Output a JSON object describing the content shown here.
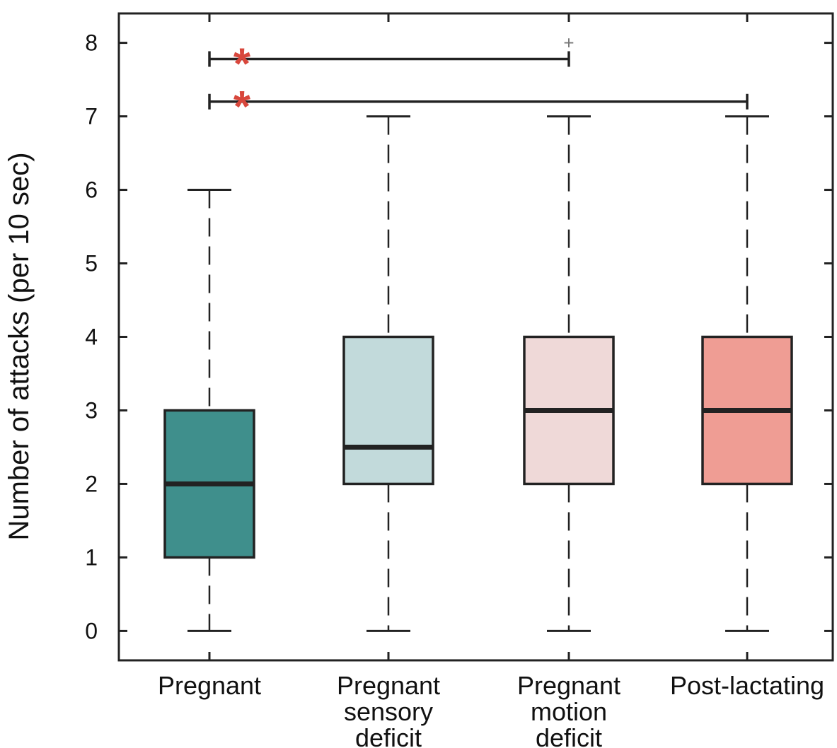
{
  "chart_data": {
    "type": "box",
    "title": "",
    "xlabel": "",
    "ylabel": "Number of attacks (per 10 sec)",
    "ylim": [
      -0.4,
      8.4
    ],
    "yticks": [
      "0",
      "1",
      "2",
      "3",
      "4",
      "5",
      "6",
      "7",
      "8"
    ],
    "grid": false,
    "categories": [
      {
        "lines": [
          "Pregnant"
        ]
      },
      {
        "lines": [
          "Pregnant",
          "sensory",
          "deficit"
        ]
      },
      {
        "lines": [
          "Pregnant",
          "motion",
          "deficit"
        ]
      },
      {
        "lines": [
          "Post-lactating"
        ]
      }
    ],
    "boxes": [
      {
        "group": "Pregnant",
        "whisker_low": 0,
        "q1": 1,
        "median": 2,
        "q3": 3,
        "whisker_high": 6,
        "fill": "#3f8f8c"
      },
      {
        "group": "Pregnant sensory deficit",
        "whisker_low": 0,
        "q1": 2,
        "median": 2.5,
        "q3": 4,
        "whisker_high": 7,
        "fill": "#c2dadb"
      },
      {
        "group": "Pregnant motion deficit",
        "whisker_low": 0,
        "q1": 2,
        "median": 3,
        "q3": 4,
        "whisker_high": 7,
        "fill": "#efd9d8"
      },
      {
        "group": "Post-lactating",
        "whisker_low": 0,
        "q1": 2,
        "median": 3,
        "q3": 4,
        "whisker_high": 7,
        "fill": "#ef9d94"
      }
    ],
    "outliers": [
      {
        "group_index": 2,
        "value": 8,
        "symbol": "+"
      }
    ],
    "significance": [
      {
        "from": 0,
        "to": 2,
        "y": 7.78,
        "label": "*"
      },
      {
        "from": 0,
        "to": 3,
        "y": 7.2,
        "label": "*"
      }
    ],
    "colors": {
      "axis": "#222222",
      "significance_star": "#d8473c",
      "outlier": "#777777"
    }
  }
}
